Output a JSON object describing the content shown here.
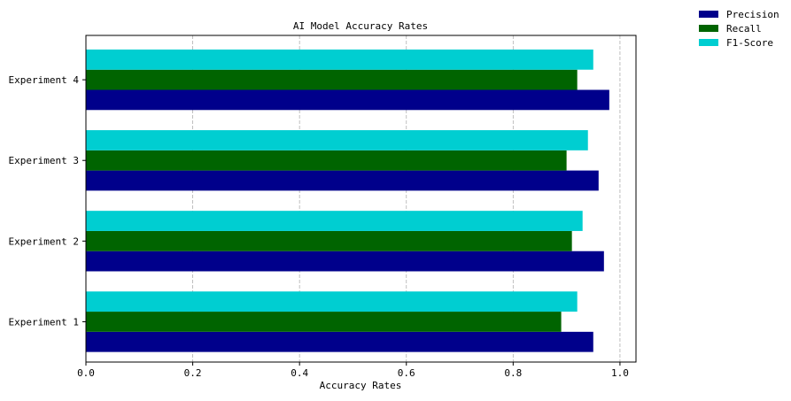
{
  "chart_data": {
    "type": "bar",
    "orientation": "horizontal",
    "title": "AI Model Accuracy Rates",
    "xlabel": "Accuracy Rates",
    "ylabel": "",
    "xlim": [
      0,
      1.03
    ],
    "x_ticks": [
      0.0,
      0.2,
      0.4,
      0.6,
      0.8,
      1.0
    ],
    "x_tick_labels": [
      "0.0",
      "0.2",
      "0.4",
      "0.6",
      "0.8",
      "1.0"
    ],
    "categories": [
      "Experiment 1",
      "Experiment 2",
      "Experiment 3",
      "Experiment 4"
    ],
    "series": [
      {
        "name": "Precision",
        "color": "#00008b",
        "values": [
          0.95,
          0.97,
          0.96,
          0.98
        ]
      },
      {
        "name": "Recall",
        "color": "#006400",
        "values": [
          0.89,
          0.91,
          0.9,
          0.92
        ]
      },
      {
        "name": "F1-Score",
        "color": "#00ced1",
        "values": [
          0.92,
          0.93,
          0.94,
          0.95
        ]
      }
    ],
    "grid": {
      "x": true,
      "y": false,
      "style": "dashed"
    },
    "legend_position": "top-right, outside plot"
  }
}
